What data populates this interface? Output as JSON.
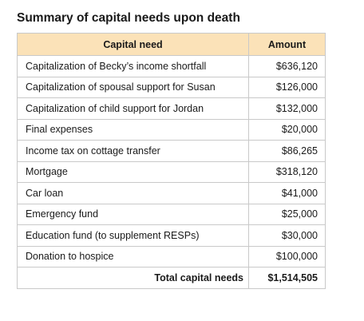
{
  "title": "Summary of capital needs upon death",
  "table": {
    "headers": {
      "need": "Capital need",
      "amount": "Amount"
    },
    "rows": [
      {
        "need": "Capitalization of Becky’s income shortfall",
        "amount": "$636,120"
      },
      {
        "need": "Capitalization of spousal support for Susan",
        "amount": "$126,000"
      },
      {
        "need": "Capitalization of child support for Jordan",
        "amount": "$132,000"
      },
      {
        "need": "Final expenses",
        "amount": "$20,000"
      },
      {
        "need": "Income tax on cottage transfer",
        "amount": "$86,265"
      },
      {
        "need": "Mortgage",
        "amount": "$318,120"
      },
      {
        "need": "Car loan",
        "amount": "$41,000"
      },
      {
        "need": "Emergency fund",
        "amount": "$25,000"
      },
      {
        "need": "Education fund (to supplement RESPs)",
        "amount": "$30,000"
      },
      {
        "need": "Donation to hospice",
        "amount": "$100,000"
      }
    ],
    "total": {
      "label": "Total capital needs",
      "amount": "$1,514,505"
    }
  },
  "colors": {
    "header_background": "#fbe2b8",
    "border": "#c9c9c9"
  }
}
